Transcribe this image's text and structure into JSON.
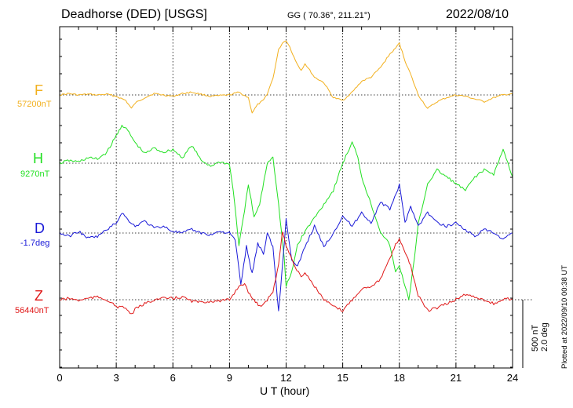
{
  "header": {
    "station": "Deadhorse (DED)  [USGS]",
    "coords": "GG ( 70.36°, 211.21°)",
    "date": "2022/08/10"
  },
  "footer": {
    "plotted": "Plotted at 2022/09/10 00:38 UT",
    "scale_nt": "500 nT",
    "scale_deg": "2.0 deg"
  },
  "chart_data": {
    "type": "line",
    "title": "Deadhorse (DED)  [USGS]",
    "xlabel": "U T (hour)",
    "ylabel": "",
    "xlim": [
      0,
      24
    ],
    "xticks": [
      "0",
      "3",
      "6",
      "9",
      "12",
      "15",
      "18",
      "21",
      "24"
    ],
    "grid": true,
    "scale_bar": {
      "nT": 500,
      "deg": 2.0
    },
    "series": [
      {
        "name": "F",
        "baseline_label": "57200nT",
        "color": "#f2b01e",
        "x": [
          0,
          0.5,
          1,
          1.5,
          2,
          2.5,
          3,
          3.5,
          3.8,
          4,
          4.5,
          5,
          5.5,
          6,
          6.5,
          7,
          7.5,
          8,
          8.5,
          9,
          9.5,
          10,
          10.2,
          10.5,
          10.8,
          11,
          11.3,
          11.6,
          11.8,
          12,
          12.2,
          12.5,
          12.8,
          13,
          13.5,
          14,
          14.5,
          15,
          15.5,
          16,
          16.5,
          17,
          17.5,
          17.8,
          18,
          18.3,
          18.6,
          19,
          19.5,
          20,
          20.5,
          21,
          21.5,
          22,
          22.5,
          23,
          23.5,
          24
        ],
        "values": [
          0,
          10,
          0,
          5,
          0,
          5,
          -10,
          -40,
          -100,
          -60,
          -20,
          10,
          0,
          -10,
          10,
          20,
          5,
          -10,
          -5,
          0,
          20,
          -20,
          -130,
          -70,
          -40,
          10,
          120,
          330,
          380,
          400,
          350,
          250,
          180,
          230,
          130,
          90,
          -20,
          -40,
          20,
          100,
          130,
          200,
          300,
          340,
          380,
          250,
          150,
          0,
          -100,
          -50,
          -20,
          0,
          -10,
          -30,
          -50,
          -20,
          0,
          10
        ]
      },
      {
        "name": "H",
        "baseline_label": "9270nT",
        "color": "#22e022",
        "x": [
          0,
          0.5,
          1,
          1.5,
          2,
          2.5,
          3,
          3.3,
          3.6,
          4,
          4.5,
          5,
          5.5,
          6,
          6.5,
          7,
          7.5,
          8,
          8.5,
          9,
          9.2,
          9.5,
          9.8,
          10,
          10.3,
          10.6,
          11,
          11.3,
          11.6,
          11.9,
          12,
          12.3,
          12.6,
          13,
          13.5,
          14,
          14.5,
          15,
          15.5,
          15.8,
          16,
          16.5,
          17,
          17.5,
          17.8,
          18,
          18.3,
          18.5,
          18.8,
          19,
          19.5,
          20,
          20.5,
          21,
          21.5,
          22,
          22.5,
          23,
          23.5,
          24
        ],
        "values": [
          0,
          20,
          10,
          40,
          30,
          80,
          200,
          280,
          240,
          150,
          70,
          110,
          80,
          100,
          40,
          130,
          20,
          -20,
          10,
          -10,
          -200,
          -600,
          -350,
          -150,
          -400,
          -300,
          0,
          50,
          -300,
          -700,
          -900,
          -800,
          -600,
          -500,
          -400,
          -300,
          -200,
          0,
          150,
          50,
          -100,
          -300,
          -500,
          -600,
          -800,
          -750,
          -900,
          -1000,
          -700,
          -450,
          -150,
          -50,
          -100,
          -150,
          -200,
          -100,
          -50,
          -80,
          100,
          -100
        ]
      },
      {
        "name": "D",
        "baseline_label": "-1.7deg",
        "color": "#1a1ad8",
        "x": [
          0,
          0.5,
          1,
          1.5,
          2,
          2.5,
          3,
          3.3,
          3.6,
          4,
          4.5,
          5,
          5.5,
          6,
          6.5,
          7,
          7.5,
          8,
          8.5,
          9,
          9.3,
          9.6,
          9.9,
          10.2,
          10.5,
          10.8,
          11,
          11.3,
          11.6,
          11.8,
          12,
          12.3,
          12.6,
          13,
          13.5,
          14,
          14.5,
          15,
          15.5,
          16,
          16.5,
          17,
          17.5,
          18,
          18.3,
          18.6,
          19,
          19.5,
          20,
          20.5,
          21,
          21.5,
          22,
          22.5,
          23,
          23.5,
          24
        ],
        "values": [
          0.0,
          -0.1,
          0.05,
          -0.15,
          -0.1,
          0.1,
          0.3,
          0.6,
          0.4,
          0.2,
          0.35,
          0.15,
          0.2,
          0.05,
          0.0,
          0.1,
          0.0,
          -0.05,
          0.05,
          0.0,
          -0.2,
          -1.5,
          -0.4,
          -1.2,
          -0.3,
          -0.6,
          0.0,
          -0.4,
          -2.3,
          -1.0,
          0.4,
          -0.8,
          -1.0,
          -0.4,
          0.2,
          -0.4,
          0.0,
          0.5,
          0.2,
          0.6,
          0.3,
          0.9,
          0.7,
          1.4,
          0.3,
          0.8,
          0.2,
          0.6,
          0.3,
          0.2,
          0.3,
          0.1,
          -0.1,
          0.1,
          0.0,
          -0.2,
          0.0
        ]
      },
      {
        "name": "Z",
        "baseline_label": "56440nT",
        "color": "#e01818",
        "x": [
          0,
          0.5,
          1,
          1.5,
          2,
          2.5,
          3,
          3.5,
          3.8,
          4,
          4.5,
          5,
          5.5,
          6,
          6.5,
          7,
          7.5,
          8,
          8.5,
          9,
          9.5,
          9.8,
          10,
          10.3,
          10.6,
          11,
          11.3,
          11.6,
          11.8,
          12,
          12.3,
          12.5,
          12.8,
          13,
          13.5,
          14,
          14.5,
          15,
          15.5,
          16,
          16.5,
          17,
          17.5,
          17.8,
          18,
          18.3,
          18.6,
          19,
          19.5,
          20,
          20.5,
          21,
          21.5,
          22,
          22.5,
          23,
          23.5,
          24
        ],
        "values": [
          0,
          10,
          -5,
          10,
          20,
          0,
          -50,
          -60,
          -110,
          -70,
          -30,
          0,
          10,
          10,
          20,
          -10,
          -20,
          -10,
          -10,
          0,
          100,
          120,
          50,
          0,
          -50,
          0,
          60,
          250,
          500,
          400,
          300,
          230,
          170,
          200,
          100,
          0,
          -50,
          -80,
          0,
          80,
          100,
          150,
          300,
          400,
          450,
          350,
          250,
          30,
          -80,
          -60,
          -30,
          0,
          40,
          20,
          0,
          -30,
          0,
          10
        ]
      }
    ]
  }
}
